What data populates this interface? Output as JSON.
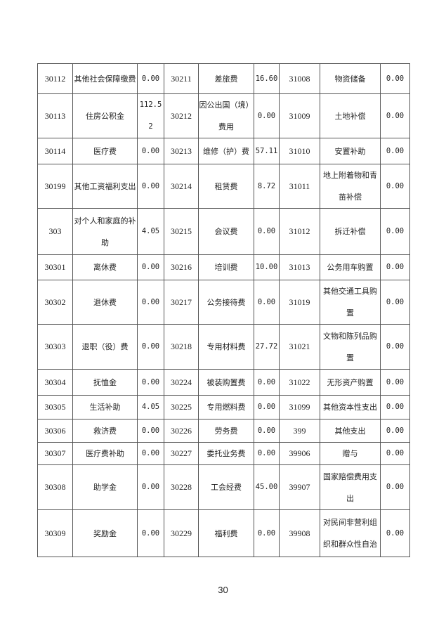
{
  "table": {
    "rows": [
      [
        "30112",
        "其他社会保障缴费",
        "0.00",
        "30211",
        "差旅费",
        "16.60",
        "31008",
        "物资储备",
        "0.00"
      ],
      [
        "30113",
        "住房公积金",
        "112.52",
        "30212",
        "因公出国（境）费用",
        "0.00",
        "31009",
        "土地补偿",
        "0.00"
      ],
      [
        "30114",
        "医疗费",
        "0.00",
        "30213",
        "维修（护）费",
        "57.11",
        "31010",
        "安置补助",
        "0.00"
      ],
      [
        "30199",
        "其他工资福利支出",
        "0.00",
        "30214",
        "租赁费",
        "8.72",
        "31011",
        "地上附着物和青苗补偿",
        "0.00"
      ],
      [
        "303",
        "对个人和家庭的补助",
        "4.05",
        "30215",
        "会议费",
        "0.00",
        "31012",
        "拆迁补偿",
        "0.00"
      ],
      [
        "30301",
        "离休费",
        "0.00",
        "30216",
        "培训费",
        "10.00",
        "31013",
        "公务用车购置",
        "0.00"
      ],
      [
        "30302",
        "退休费",
        "0.00",
        "30217",
        "公务接待费",
        "0.00",
        "31019",
        "其他交通工具购置",
        "0.00"
      ],
      [
        "30303",
        "退职（役）费",
        "0.00",
        "30218",
        "专用材料费",
        "27.72",
        "31021",
        "文物和陈列品购置",
        "0.00"
      ],
      [
        "30304",
        "抚恤金",
        "0.00",
        "30224",
        "被装购置费",
        "0.00",
        "31022",
        "无形资产购置",
        "0.00"
      ],
      [
        "30305",
        "生活补助",
        "4.05",
        "30225",
        "专用燃料费",
        "0.00",
        "31099",
        "其他资本性支出",
        "0.00"
      ],
      [
        "30306",
        "救济费",
        "0.00",
        "30226",
        "劳务费",
        "0.00",
        "399",
        "其他支出",
        "0.00"
      ],
      [
        "30307",
        "医疗费补助",
        "0.00",
        "30227",
        "委托业务费",
        "0.00",
        "39906",
        "赠与",
        "0.00"
      ],
      [
        "30308",
        "助学金",
        "0.00",
        "30228",
        "工会经费",
        "45.00",
        "39907",
        "国家赔偿费用支出",
        "0.00"
      ],
      [
        "30309",
        "奖励金",
        "0.00",
        "30229",
        "福利费",
        "0.00",
        "39908",
        "对民间非营利组织和群众性自治",
        "0.00"
      ]
    ]
  },
  "page_number": "30"
}
